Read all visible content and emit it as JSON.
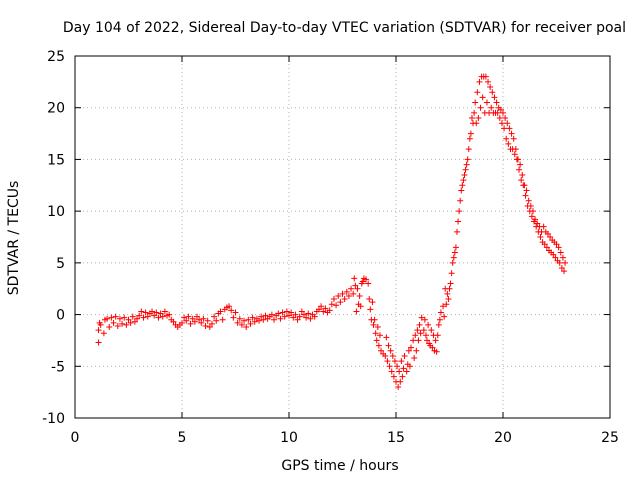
{
  "chart_data": {
    "type": "scatter",
    "title": "Day 104 of 2022, Sidereal Day-to-day VTEC variation (SDTVAR) for receiver poal",
    "xlabel": "GPS time / hours",
    "ylabel": "SDTVAR / TECUs",
    "xlim": [
      0,
      25
    ],
    "ylim": [
      -10,
      25
    ],
    "xticks": [
      "0",
      "5",
      "10",
      "15",
      "20",
      "25"
    ],
    "yticks": [
      "-10",
      "-5",
      "0",
      "5",
      "10",
      "15",
      "20",
      "25"
    ],
    "xtick_values": [
      0,
      5,
      10,
      15,
      20,
      25
    ],
    "ytick_values": [
      -10,
      -5,
      0,
      5,
      10,
      15,
      20,
      25
    ],
    "grid": true,
    "marker": "+",
    "series": [
      {
        "name": "SDTVAR",
        "color": "#ff0000",
        "points": [
          [
            1.1,
            -2.7
          ],
          [
            1.1,
            -1.5
          ],
          [
            1.15,
            -0.8
          ],
          [
            1.2,
            -1.0
          ],
          [
            1.35,
            -1.8
          ],
          [
            1.4,
            -0.5
          ],
          [
            1.5,
            -0.4
          ],
          [
            1.6,
            -1.2
          ],
          [
            1.7,
            -0.3
          ],
          [
            1.8,
            -0.8
          ],
          [
            1.9,
            -0.2
          ],
          [
            2.0,
            -1.1
          ],
          [
            2.1,
            -0.4
          ],
          [
            2.2,
            -0.9
          ],
          [
            2.3,
            -0.3
          ],
          [
            2.4,
            -1.0
          ],
          [
            2.5,
            -0.5
          ],
          [
            2.6,
            -0.8
          ],
          [
            2.7,
            -0.2
          ],
          [
            2.8,
            -0.7
          ],
          [
            2.9,
            -0.4
          ],
          [
            3.0,
            -0.1
          ],
          [
            3.1,
            0.3
          ],
          [
            3.2,
            -0.3
          ],
          [
            3.3,
            0.2
          ],
          [
            3.4,
            -0.2
          ],
          [
            3.5,
            0.1
          ],
          [
            3.6,
            0.3
          ],
          [
            3.7,
            -0.1
          ],
          [
            3.8,
            0.2
          ],
          [
            3.9,
            -0.3
          ],
          [
            4.0,
            0.1
          ],
          [
            4.1,
            -0.2
          ],
          [
            4.2,
            0.3
          ],
          [
            4.3,
            -0.1
          ],
          [
            4.4,
            0.0
          ],
          [
            4.5,
            -0.5
          ],
          [
            4.6,
            -0.7
          ],
          [
            4.7,
            -1.0
          ],
          [
            4.8,
            -1.2
          ],
          [
            4.9,
            -1.0
          ],
          [
            5.0,
            -0.8
          ],
          [
            5.1,
            -0.3
          ],
          [
            5.2,
            -0.6
          ],
          [
            5.3,
            -0.2
          ],
          [
            5.4,
            -0.9
          ],
          [
            5.5,
            -0.4
          ],
          [
            5.6,
            -0.7
          ],
          [
            5.7,
            -0.2
          ],
          [
            5.8,
            -0.5
          ],
          [
            5.9,
            -0.8
          ],
          [
            6.0,
            -0.4
          ],
          [
            6.1,
            -1.1
          ],
          [
            6.2,
            -0.6
          ],
          [
            6.3,
            -1.2
          ],
          [
            6.4,
            -0.9
          ],
          [
            6.5,
            -0.2
          ],
          [
            6.6,
            -0.6
          ],
          [
            6.7,
            0.1
          ],
          [
            6.8,
            0.3
          ],
          [
            6.9,
            -0.5
          ],
          [
            7.0,
            0.5
          ],
          [
            7.1,
            0.7
          ],
          [
            7.2,
            0.8
          ],
          [
            7.3,
            0.4
          ],
          [
            7.4,
            -0.3
          ],
          [
            7.5,
            0.2
          ],
          [
            7.6,
            -0.8
          ],
          [
            7.7,
            -0.4
          ],
          [
            7.8,
            -1.0
          ],
          [
            7.9,
            -0.6
          ],
          [
            8.0,
            -1.2
          ],
          [
            8.1,
            -0.5
          ],
          [
            8.2,
            -0.9
          ],
          [
            8.3,
            -0.3
          ],
          [
            8.4,
            -0.7
          ],
          [
            8.5,
            -0.4
          ],
          [
            8.6,
            -0.6
          ],
          [
            8.7,
            -0.2
          ],
          [
            8.8,
            -0.5
          ],
          [
            8.9,
            -0.1
          ],
          [
            9.0,
            -0.4
          ],
          [
            9.1,
            -0.2
          ],
          [
            9.2,
            0.0
          ],
          [
            9.3,
            -0.5
          ],
          [
            9.4,
            -0.1
          ],
          [
            9.5,
            0.1
          ],
          [
            9.6,
            -0.4
          ],
          [
            9.7,
            0.2
          ],
          [
            9.8,
            -0.2
          ],
          [
            9.9,
            0.3
          ],
          [
            10.0,
            -0.1
          ],
          [
            10.1,
            0.2
          ],
          [
            10.2,
            -0.3
          ],
          [
            10.3,
            0.0
          ],
          [
            10.4,
            -0.5
          ],
          [
            10.5,
            -0.2
          ],
          [
            10.6,
            0.3
          ],
          [
            10.7,
            0.0
          ],
          [
            10.8,
            -0.3
          ],
          [
            10.9,
            0.1
          ],
          [
            11.0,
            -0.4
          ],
          [
            11.1,
            0.0
          ],
          [
            11.2,
            -0.2
          ],
          [
            11.3,
            0.3
          ],
          [
            11.4,
            0.5
          ],
          [
            11.5,
            0.8
          ],
          [
            11.6,
            0.3
          ],
          [
            11.7,
            0.6
          ],
          [
            11.8,
            0.2
          ],
          [
            11.9,
            0.4
          ],
          [
            12.0,
            1.0
          ],
          [
            12.1,
            1.5
          ],
          [
            12.2,
            0.9
          ],
          [
            12.3,
            1.8
          ],
          [
            12.4,
            1.2
          ],
          [
            12.5,
            2.0
          ],
          [
            12.6,
            1.5
          ],
          [
            12.7,
            2.2
          ],
          [
            12.8,
            1.8
          ],
          [
            12.9,
            2.5
          ],
          [
            13.0,
            2.0
          ],
          [
            13.05,
            3.5
          ],
          [
            13.1,
            2.8
          ],
          [
            13.15,
            0.3
          ],
          [
            13.2,
            2.5
          ],
          [
            13.25,
            1.0
          ],
          [
            13.3,
            1.8
          ],
          [
            13.35,
            0.8
          ],
          [
            13.4,
            3.0
          ],
          [
            13.45,
            3.2
          ],
          [
            13.5,
            3.5
          ],
          [
            13.6,
            3.4
          ],
          [
            13.7,
            3.0
          ],
          [
            13.75,
            1.5
          ],
          [
            13.8,
            0.5
          ],
          [
            13.85,
            -0.5
          ],
          [
            13.9,
            1.2
          ],
          [
            13.95,
            -1.0
          ],
          [
            14.0,
            -0.5
          ],
          [
            14.05,
            -1.8
          ],
          [
            14.1,
            -2.5
          ],
          [
            14.15,
            -1.2
          ],
          [
            14.2,
            -3.0
          ],
          [
            14.25,
            -2.0
          ],
          [
            14.3,
            -3.5
          ],
          [
            14.4,
            -3.8
          ],
          [
            14.5,
            -4.0
          ],
          [
            14.55,
            -2.2
          ],
          [
            14.6,
            -4.5
          ],
          [
            14.65,
            -3.0
          ],
          [
            14.7,
            -5.0
          ],
          [
            14.75,
            -3.5
          ],
          [
            14.8,
            -5.5
          ],
          [
            14.85,
            -4.0
          ],
          [
            14.9,
            -6.0
          ],
          [
            14.95,
            -4.5
          ],
          [
            15.0,
            -6.5
          ],
          [
            15.05,
            -5.0
          ],
          [
            15.1,
            -7.0
          ],
          [
            15.15,
            -5.5
          ],
          [
            15.2,
            -6.5
          ],
          [
            15.25,
            -4.5
          ],
          [
            15.3,
            -6.0
          ],
          [
            15.35,
            -5.2
          ],
          [
            15.4,
            -4.0
          ],
          [
            15.5,
            -5.5
          ],
          [
            15.55,
            -4.8
          ],
          [
            15.6,
            -3.5
          ],
          [
            15.65,
            -5.0
          ],
          [
            15.7,
            -3.2
          ],
          [
            15.8,
            -2.5
          ],
          [
            15.85,
            -4.2
          ],
          [
            15.9,
            -2.0
          ],
          [
            15.95,
            -3.5
          ],
          [
            16.0,
            -1.5
          ],
          [
            16.05,
            -2.5
          ],
          [
            16.1,
            -1.0
          ],
          [
            16.15,
            -1.8
          ],
          [
            16.2,
            -0.3
          ],
          [
            16.3,
            -1.5
          ],
          [
            16.35,
            -0.5
          ],
          [
            16.4,
            -2.0
          ],
          [
            16.45,
            -2.5
          ],
          [
            16.5,
            -1.0
          ],
          [
            16.55,
            -2.8
          ],
          [
            16.6,
            -3.0
          ],
          [
            16.65,
            -1.5
          ],
          [
            16.7,
            -3.2
          ],
          [
            16.75,
            -2.0
          ],
          [
            16.8,
            -3.5
          ],
          [
            16.85,
            -2.5
          ],
          [
            16.9,
            -3.6
          ],
          [
            16.95,
            -2.0
          ],
          [
            17.0,
            -1.0
          ],
          [
            17.05,
            -0.5
          ],
          [
            17.1,
            0.2
          ],
          [
            17.2,
            0.8
          ],
          [
            17.25,
            -0.2
          ],
          [
            17.3,
            2.5
          ],
          [
            17.35,
            1.0
          ],
          [
            17.4,
            2.0
          ],
          [
            17.45,
            1.5
          ],
          [
            17.5,
            2.5
          ],
          [
            17.55,
            3.0
          ],
          [
            17.6,
            4.0
          ],
          [
            17.65,
            5.0
          ],
          [
            17.7,
            5.5
          ],
          [
            17.75,
            6.0
          ],
          [
            17.8,
            6.5
          ],
          [
            17.85,
            8.0
          ],
          [
            17.9,
            9.0
          ],
          [
            17.95,
            10.0
          ],
          [
            18.0,
            11.0
          ],
          [
            18.05,
            12.0
          ],
          [
            18.1,
            12.5
          ],
          [
            18.15,
            13.0
          ],
          [
            18.2,
            13.5
          ],
          [
            18.25,
            14.0
          ],
          [
            18.3,
            14.5
          ],
          [
            18.35,
            15.0
          ],
          [
            18.4,
            16.0
          ],
          [
            18.45,
            17.0
          ],
          [
            18.5,
            17.5
          ],
          [
            18.55,
            19.0
          ],
          [
            18.6,
            18.5
          ],
          [
            18.65,
            19.5
          ],
          [
            18.7,
            20.5
          ],
          [
            18.75,
            18.5
          ],
          [
            18.8,
            21.5
          ],
          [
            18.85,
            19.0
          ],
          [
            18.9,
            22.5
          ],
          [
            18.95,
            20.0
          ],
          [
            19.0,
            23.0
          ],
          [
            19.05,
            21.0
          ],
          [
            19.1,
            23.0
          ],
          [
            19.15,
            19.5
          ],
          [
            19.2,
            23.0
          ],
          [
            19.25,
            20.5
          ],
          [
            19.3,
            22.5
          ],
          [
            19.35,
            19.5
          ],
          [
            19.4,
            22.0
          ],
          [
            19.45,
            20.0
          ],
          [
            19.5,
            21.5
          ],
          [
            19.55,
            19.5
          ],
          [
            19.6,
            21.0
          ],
          [
            19.65,
            19.5
          ],
          [
            19.7,
            20.5
          ],
          [
            19.75,
            19.5
          ],
          [
            19.8,
            20.0
          ],
          [
            19.85,
            19.0
          ],
          [
            19.9,
            19.8
          ],
          [
            19.95,
            18.5
          ],
          [
            20.0,
            19.5
          ],
          [
            20.05,
            18.0
          ],
          [
            20.1,
            19.0
          ],
          [
            20.15,
            17.0
          ],
          [
            20.2,
            18.5
          ],
          [
            20.25,
            16.5
          ],
          [
            20.3,
            18.0
          ],
          [
            20.35,
            16.0
          ],
          [
            20.4,
            17.5
          ],
          [
            20.45,
            16.0
          ],
          [
            20.5,
            17.0
          ],
          [
            20.55,
            15.5
          ],
          [
            20.6,
            16.0
          ],
          [
            20.65,
            15.0
          ],
          [
            20.7,
            15.0
          ],
          [
            20.75,
            14.0
          ],
          [
            20.8,
            14.5
          ],
          [
            20.85,
            13.0
          ],
          [
            20.9,
            13.5
          ],
          [
            20.95,
            12.5
          ],
          [
            21.0,
            12.5
          ],
          [
            21.05,
            11.5
          ],
          [
            21.1,
            12.0
          ],
          [
            21.15,
            10.5
          ],
          [
            21.2,
            11.0
          ],
          [
            21.25,
            10.0
          ],
          [
            21.3,
            10.5
          ],
          [
            21.35,
            9.5
          ],
          [
            21.4,
            10.0
          ],
          [
            21.45,
            9.0
          ],
          [
            21.5,
            9.2
          ],
          [
            21.55,
            8.5
          ],
          [
            21.6,
            8.8
          ],
          [
            21.65,
            8.0
          ],
          [
            21.7,
            8.5
          ],
          [
            21.75,
            7.5
          ],
          [
            21.8,
            8.0
          ],
          [
            21.85,
            7.0
          ],
          [
            21.9,
            8.5
          ],
          [
            21.95,
            6.8
          ],
          [
            22.0,
            8.0
          ],
          [
            22.05,
            6.5
          ],
          [
            22.1,
            7.8
          ],
          [
            22.15,
            6.2
          ],
          [
            22.2,
            7.5
          ],
          [
            22.25,
            6.0
          ],
          [
            22.3,
            7.2
          ],
          [
            22.35,
            5.8
          ],
          [
            22.4,
            7.0
          ],
          [
            22.45,
            5.5
          ],
          [
            22.5,
            6.8
          ],
          [
            22.55,
            5.2
          ],
          [
            22.6,
            6.5
          ],
          [
            22.65,
            5.0
          ],
          [
            22.7,
            6.0
          ],
          [
            22.75,
            4.5
          ],
          [
            22.8,
            5.5
          ],
          [
            22.85,
            4.2
          ],
          [
            22.9,
            5.0
          ]
        ]
      }
    ]
  }
}
